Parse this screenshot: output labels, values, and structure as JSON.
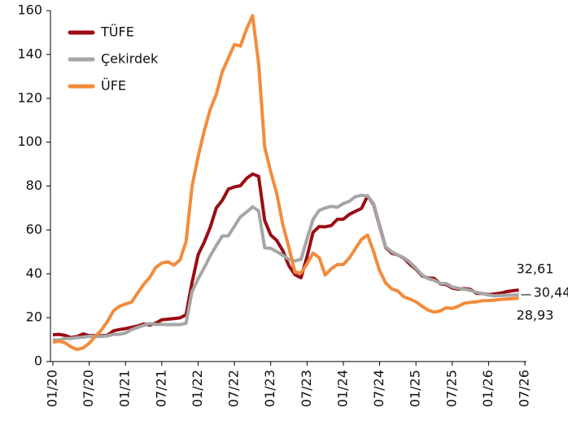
{
  "chart_data": {
    "type": "line",
    "categories": [
      "01/20",
      null,
      null,
      null,
      null,
      null,
      "07/20",
      null,
      null,
      null,
      null,
      null,
      "01/21",
      null,
      null,
      null,
      null,
      null,
      "07/21",
      null,
      null,
      null,
      null,
      null,
      "01/22",
      null,
      null,
      null,
      null,
      null,
      "07/22",
      null,
      null,
      null,
      null,
      null,
      "01/23",
      null,
      null,
      null,
      null,
      null,
      "07/23",
      null,
      null,
      null,
      null,
      null,
      "01/24",
      null,
      null,
      null,
      null,
      null,
      "07/24",
      null,
      null,
      null,
      null,
      null,
      "01/25",
      null,
      null,
      null,
      null,
      null,
      "07/25",
      null,
      null,
      null,
      null,
      null,
      "01/26",
      null,
      null,
      null,
      null,
      null,
      "07/26"
    ],
    "series": [
      {
        "name": "TÜFE",
        "color": "#9b0d14",
        "values": [
          12.2,
          12.4,
          11.9,
          10.9,
          11.4,
          12.6,
          11.8,
          11.8,
          11.8,
          11.9,
          14.0,
          14.6,
          15.0,
          15.6,
          16.2,
          17.1,
          16.6,
          17.5,
          19.0,
          19.3,
          19.6,
          19.9,
          21.3,
          36.1,
          48.7,
          54.4,
          61.1,
          70.0,
          73.5,
          78.6,
          79.6,
          80.2,
          83.5,
          85.5,
          84.4,
          64.3,
          57.7,
          55.2,
          50.5,
          43.7,
          39.6,
          38.2,
          47.8,
          58.9,
          61.5,
          61.4,
          62.0,
          64.8,
          64.9,
          67.1,
          68.5,
          69.8,
          75.5,
          71.6,
          61.8,
          52.0,
          49.4,
          48.6,
          47.1,
          44.4,
          42.1,
          39.1,
          38.1,
          37.9,
          35.4,
          35.1,
          33.5,
          33.0,
          33.3,
          32.9,
          31.1,
          31.0,
          30.5,
          30.8,
          31.2,
          31.9,
          32.3,
          32.61,
          null
        ]
      },
      {
        "name": "Çekirdek",
        "color": "#a6a6a6",
        "values": [
          9.9,
          9.8,
          10.5,
          10.5,
          10.9,
          11.1,
          11.5,
          11.4,
          11.4,
          11.7,
          12.4,
          12.4,
          13.0,
          14.5,
          15.5,
          16.5,
          17.3,
          16.9,
          17.0,
          16.8,
          16.9,
          16.8,
          17.5,
          31.9,
          37.7,
          42.7,
          48.1,
          52.9,
          57.2,
          57.3,
          61.7,
          66.0,
          68.1,
          70.5,
          68.7,
          51.9,
          51.6,
          50.1,
          48.4,
          46.6,
          45.9,
          46.6,
          55.9,
          64.8,
          68.9,
          70.0,
          70.8,
          70.3,
          72.0,
          73.1,
          75.2,
          75.8,
          75.4,
          72.1,
          62.3,
          52.3,
          50.0,
          48.6,
          47.3,
          45.3,
          42.5,
          39.5,
          37.8,
          37.0,
          35.6,
          35.6,
          34.0,
          33.4,
          33.0,
          32.4,
          31.6,
          31.0,
          30.3,
          30.0,
          30.1,
          30.2,
          30.3,
          30.44,
          null
        ]
      },
      {
        "name": "ÜFE",
        "color": "#f28c3c",
        "values": [
          8.8,
          9.3,
          8.5,
          6.7,
          5.5,
          6.2,
          8.3,
          11.5,
          14.3,
          18.2,
          23.1,
          25.2,
          26.2,
          27.1,
          31.2,
          35.2,
          38.3,
          42.9,
          44.9,
          45.5,
          43.9,
          46.3,
          54.6,
          79.9,
          93.5,
          105.0,
          114.9,
          121.8,
          132.2,
          138.3,
          144.6,
          143.8,
          151.5,
          157.7,
          136.0,
          97.7,
          86.5,
          76.6,
          62.4,
          52.1,
          40.8,
          40.4,
          44.5,
          49.4,
          47.4,
          39.4,
          42.3,
          44.2,
          44.2,
          47.3,
          51.5,
          55.7,
          57.7,
          50.1,
          41.4,
          35.8,
          33.1,
          32.2,
          29.5,
          28.5,
          27.2,
          25.2,
          23.5,
          22.5,
          23.1,
          24.5,
          24.2,
          25.2,
          26.6,
          27.0,
          27.2,
          27.7,
          27.8,
          28.0,
          28.3,
          28.5,
          28.7,
          28.93,
          null
        ]
      }
    ],
    "annotations": [
      "32,61",
      "30,44",
      "28,93"
    ],
    "ylim": [
      0,
      160
    ],
    "yticks": [
      0,
      20,
      40,
      60,
      80,
      100,
      120,
      140,
      160
    ],
    "grid": false,
    "legend": "top-left"
  }
}
